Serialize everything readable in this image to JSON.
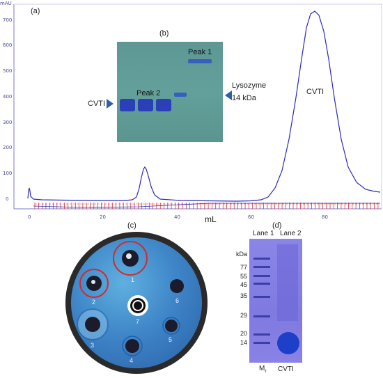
{
  "panel_a": {
    "label": "(a)",
    "y_unit": "mAU",
    "y_ticks": [
      "700",
      "600",
      "500",
      "400",
      "300",
      "200",
      "100",
      "0"
    ],
    "x_ticks": [
      "0",
      "20",
      "40",
      "60",
      "80"
    ],
    "x_label": "mL",
    "peak_label": "CVTI",
    "colors": {
      "trace": "#2a2abf",
      "fractions": "#e03030",
      "axis": "#7a7ad0"
    }
  },
  "panel_b": {
    "label": "(b)",
    "peak1_label": "Peak 1",
    "peak2_label": "Peak 2",
    "left_marker_label": "CVTI",
    "right_marker_label_line1": "Lysozyme",
    "right_marker_label_line2": "14 kDa",
    "colors": {
      "gel": "#5f9a96",
      "band": "#2a3fb8",
      "arrow": "#2e5fa8"
    }
  },
  "panel_c": {
    "label": "(c)",
    "well_numbers": [
      "1",
      "2",
      "3",
      "4",
      "5",
      "6",
      "7"
    ]
  },
  "panel_d": {
    "label": "(d)",
    "lane1": "Lane 1",
    "lane2": "Lane 2",
    "kda_unit": "kDa",
    "markers": [
      "77",
      "55",
      "45",
      "35",
      "29",
      "20",
      "14"
    ],
    "bottom_left": "M",
    "bottom_left_sub": "r",
    "bottom_right": "CVTI"
  }
}
